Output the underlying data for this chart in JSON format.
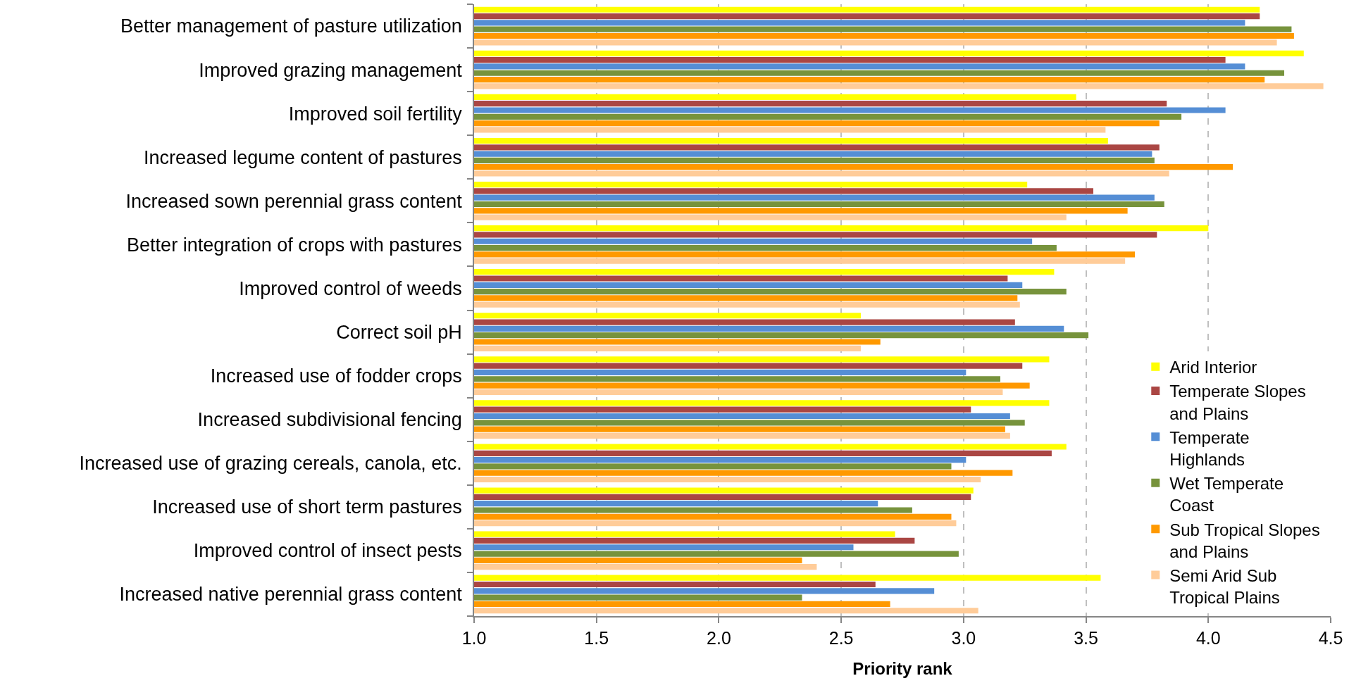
{
  "chart_data": {
    "type": "bar",
    "orientation": "horizontal",
    "xlabel": "Priority rank",
    "categories": [
      "Better management of pasture utilization",
      "Improved grazing management",
      "Improved soil fertility",
      "Increased legume content of pastures",
      "Increased sown perennial grass content",
      "Better integration of crops with pastures",
      "Improved control of weeds",
      "Correct soil pH",
      "Increased use of fodder crops",
      "Increased subdivisional fencing",
      "Increased use of grazing cereals, canola, etc.",
      "Increased use of short term pastures",
      "Improved control of insect pests",
      "Increased native perennial grass content"
    ],
    "series": [
      {
        "name": "Arid Interior",
        "color": "#ffff00",
        "values": [
          4.21,
          4.39,
          3.46,
          3.59,
          3.26,
          4.0,
          3.37,
          2.58,
          3.35,
          3.35,
          3.42,
          3.04,
          2.72,
          3.56
        ]
      },
      {
        "name": "Temperate Slopes and Plains",
        "color": "#aa4643",
        "values": [
          4.21,
          4.07,
          3.83,
          3.8,
          3.53,
          3.79,
          3.18,
          3.21,
          3.24,
          3.03,
          3.36,
          3.03,
          2.8,
          2.64
        ]
      },
      {
        "name": "Temperate Highlands",
        "color": "#558ed5",
        "values": [
          4.15,
          4.15,
          4.07,
          3.77,
          3.78,
          3.28,
          3.24,
          3.41,
          3.01,
          3.19,
          3.01,
          2.65,
          2.55,
          2.88
        ]
      },
      {
        "name": "Wet Temperate Coast",
        "color": "#77933c",
        "values": [
          4.34,
          4.31,
          3.89,
          3.78,
          3.82,
          3.38,
          3.42,
          3.51,
          3.15,
          3.25,
          2.95,
          2.79,
          2.98,
          2.34
        ]
      },
      {
        "name": "Sub Tropical Slopes and Plains",
        "color": "#ff9900",
        "values": [
          4.35,
          4.23,
          3.8,
          4.1,
          3.67,
          3.7,
          3.22,
          2.66,
          3.27,
          3.17,
          3.2,
          2.95,
          2.34,
          2.7
        ]
      },
      {
        "name": "Semi Arid Sub Tropical Plains",
        "color": "#ffcc99",
        "values": [
          4.28,
          4.47,
          3.58,
          3.84,
          3.42,
          3.66,
          3.23,
          2.58,
          3.16,
          3.19,
          3.07,
          2.97,
          2.4,
          3.06
        ]
      }
    ],
    "xlim": [
      1,
      4.5
    ],
    "xticks": [
      {
        "value": 1,
        "label": "1.0"
      },
      1.5,
      {
        "value": 2,
        "label": "2.0"
      },
      2.5,
      {
        "value": 3,
        "label": "3.0"
      },
      3.5,
      {
        "value": 4,
        "label": "4.0"
      },
      4.5
    ],
    "grid": "x",
    "legend": "bottom right"
  }
}
